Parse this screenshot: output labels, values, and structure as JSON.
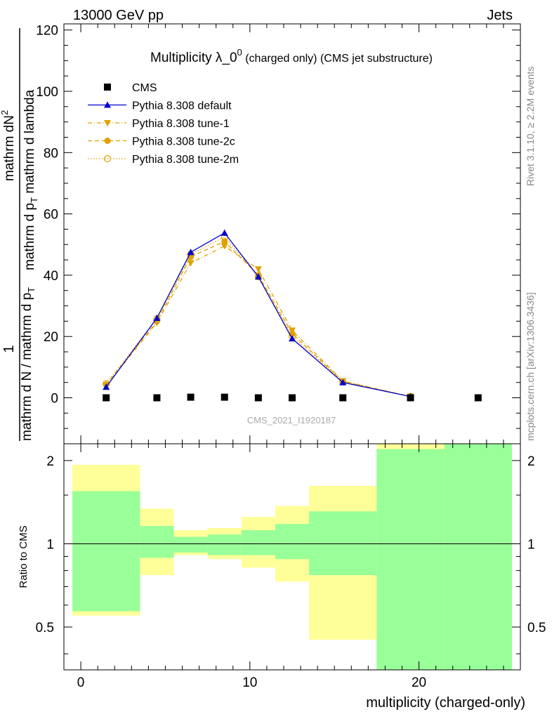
{
  "header": {
    "left": "13000 GeV pp",
    "right": "Jets"
  },
  "side_labels": {
    "rivet": "Rivet 3.1.10, ≥ 2.2M events",
    "mcplots": "mcplots.cern.ch [arXiv:1306.3436]"
  },
  "chart_data": [
    {
      "type": "line",
      "title_main": "Multiplicity λ_0",
      "title_sup": "0",
      "title_small": " (charged only) (CMS jet substructure)",
      "ylabel": {
        "num": "mathrm dN",
        "num_sup": "2",
        "den": "mathrm d p",
        "den_sub": "T",
        "den_rest": " mathrm d lambda",
        "frac_one": "1",
        "left_text": "mathrm d N / mathrm d p",
        "left_sub": "T"
      },
      "watermark": "CMS_2021_I1920187",
      "xlim": [
        -1,
        26
      ],
      "ylim": [
        -15,
        122
      ],
      "yticks": [
        0,
        20,
        40,
        60,
        80,
        100,
        120
      ],
      "yticks_text": [
        "0",
        "20",
        "40",
        "60",
        "80",
        "100",
        "120"
      ],
      "grid": false,
      "legend_position": "top-left",
      "series": [
        {
          "name": "CMS",
          "color": "#000000",
          "marker": "square",
          "x": [
            1.5,
            4.5,
            6.5,
            8.5,
            10.5,
            12.5,
            15.5,
            19.5,
            23.5
          ],
          "y": [
            0.0,
            0.0,
            0.2,
            0.2,
            0.0,
            0.0,
            0.0,
            0.0,
            0.0
          ]
        },
        {
          "name": "Pythia 8.308 default",
          "color": "#0000cc",
          "marker": "triangle-up",
          "line": "solid",
          "x": [
            1.5,
            4.5,
            6.5,
            8.5,
            10.5,
            12.5,
            15.5,
            19.5
          ],
          "y": [
            3.5,
            26.0,
            47.5,
            53.8,
            39.5,
            19.3,
            5.0,
            0.4
          ],
          "err": [
            0.4,
            0.7,
            0.9,
            1.0,
            0.8,
            0.6,
            0.3,
            0.1
          ]
        },
        {
          "name": "Pythia 8.308 tune-1",
          "color": "#e0a000",
          "marker": "triangle-down",
          "line": "dashdot",
          "x": [
            1.5,
            4.5,
            6.5,
            8.5,
            10.5,
            12.5,
            15.5,
            19.5
          ],
          "y": [
            4.0,
            24.5,
            44.0,
            49.5,
            42.0,
            22.0,
            5.5,
            0.4
          ]
        },
        {
          "name": "Pythia 8.308 tune-2c",
          "color": "#e0a000",
          "marker": "circle",
          "line": "dashed",
          "x": [
            1.5,
            4.5,
            6.5,
            8.5,
            10.5,
            12.5,
            15.5,
            19.5
          ],
          "y": [
            4.3,
            25.0,
            46.0,
            51.0,
            40.0,
            21.0,
            5.3,
            0.4
          ]
        },
        {
          "name": "Pythia 8.308 tune-2m",
          "color": "#e0a000",
          "marker": "circle-open",
          "line": "dotted",
          "x": [
            1.5,
            4.5,
            6.5,
            8.5,
            10.5,
            12.5,
            15.5,
            19.5
          ],
          "y": [
            4.6,
            25.8,
            46.8,
            52.5,
            39.5,
            20.2,
            5.2,
            0.4
          ]
        }
      ]
    },
    {
      "type": "area",
      "ylabel": "Ratio to CMS",
      "xlabel": "multiplicity (charged-only)",
      "xlim": [
        -1,
        26
      ],
      "ylim": [
        0.35,
        2.3
      ],
      "ylog": true,
      "xticks": [
        0,
        10,
        20
      ],
      "xticks_text": [
        "0",
        "10",
        "20"
      ],
      "yticks": [
        0.5,
        1,
        2
      ],
      "yticks_text": [
        "0.5",
        "1",
        "2"
      ],
      "reference_line": 1,
      "bins": [
        {
          "lo": -0.5,
          "hi": 3.5,
          "stat": [
            0.57,
            1.55
          ],
          "total": [
            0.55,
            1.93
          ]
        },
        {
          "lo": 3.5,
          "hi": 5.5,
          "stat": [
            0.89,
            1.16
          ],
          "total": [
            0.77,
            1.34
          ]
        },
        {
          "lo": 5.5,
          "hi": 7.5,
          "stat": [
            0.93,
            1.06
          ],
          "total": [
            0.91,
            1.12
          ]
        },
        {
          "lo": 7.5,
          "hi": 9.5,
          "stat": [
            0.91,
            1.08
          ],
          "total": [
            0.88,
            1.14
          ]
        },
        {
          "lo": 9.5,
          "hi": 11.5,
          "stat": [
            0.91,
            1.12
          ],
          "total": [
            0.82,
            1.25
          ]
        },
        {
          "lo": 11.5,
          "hi": 13.5,
          "stat": [
            0.88,
            1.18
          ],
          "total": [
            0.73,
            1.37
          ]
        },
        {
          "lo": 13.5,
          "hi": 17.5,
          "stat": [
            0.77,
            1.31
          ],
          "total": [
            0.45,
            1.62
          ]
        },
        {
          "lo": 17.5,
          "hi": 21.5,
          "stat": [
            0.35,
            2.2
          ],
          "total": [
            0.35,
            2.3
          ]
        },
        {
          "lo": 21.5,
          "hi": 25.5,
          "stat": [
            0.35,
            2.3
          ],
          "total": [
            0.35,
            2.3
          ]
        }
      ],
      "colors": {
        "stat": "#99ff99",
        "total": "#ffff99"
      }
    }
  ]
}
